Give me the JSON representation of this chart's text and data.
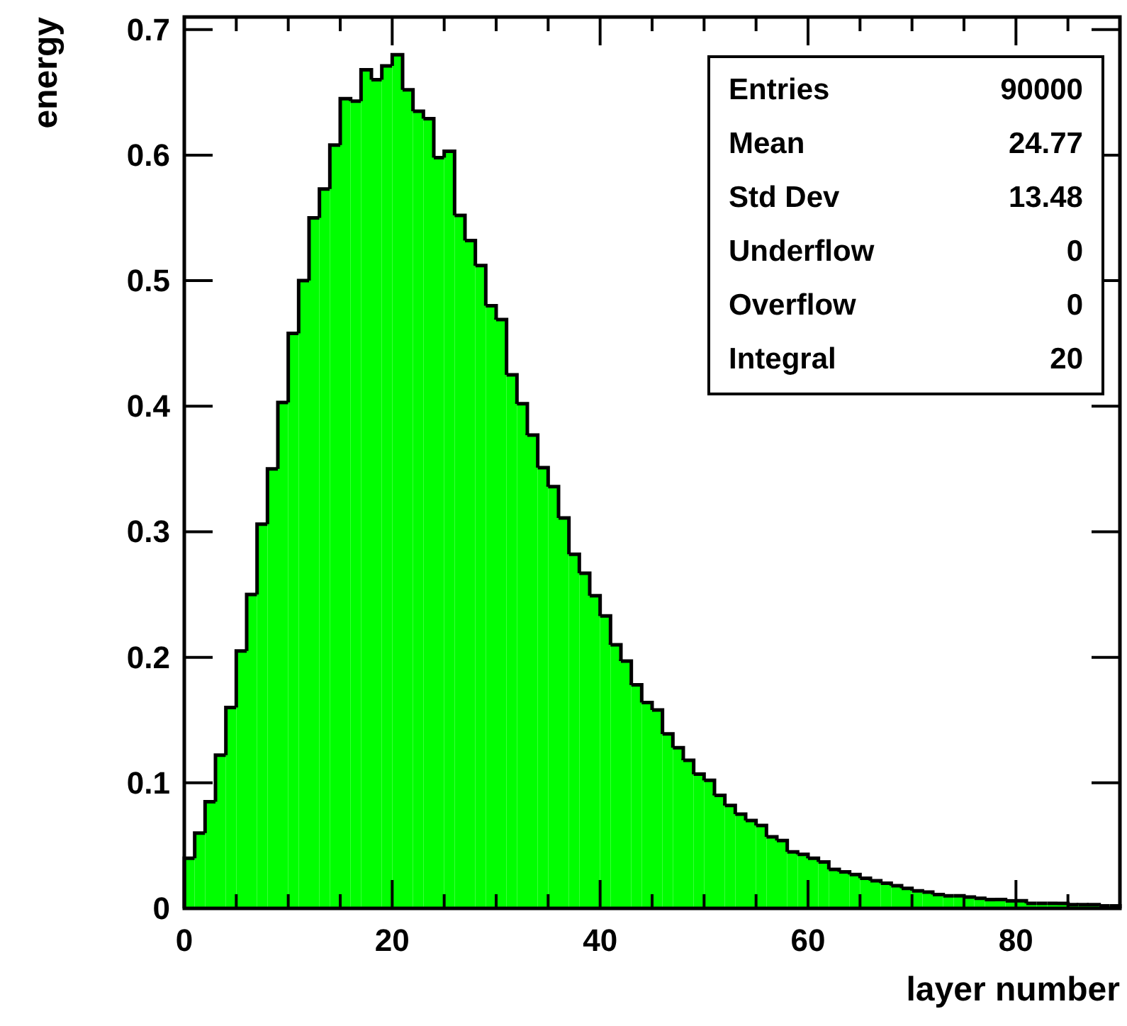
{
  "chart_data": {
    "type": "histogram",
    "xlabel": "layer number",
    "ylabel": "energy",
    "color": "#00ff00",
    "bins": [
      0,
      1,
      2,
      3,
      4,
      5,
      6,
      7,
      8,
      9,
      10,
      11,
      12,
      13,
      14,
      15,
      16,
      17,
      18,
      19,
      20,
      21,
      22,
      23,
      24,
      25,
      26,
      27,
      28,
      29,
      30,
      31,
      32,
      33,
      34,
      35,
      36,
      37,
      38,
      39,
      40,
      41,
      42,
      43,
      44,
      45,
      46,
      47,
      48,
      49,
      50,
      51,
      52,
      53,
      54,
      55,
      56,
      57,
      58,
      59,
      60,
      61,
      62,
      63,
      64,
      65,
      66,
      67,
      68,
      69,
      70,
      71,
      72,
      73,
      74,
      75,
      76,
      77,
      78,
      79,
      80,
      81,
      82,
      83,
      84,
      85,
      86,
      87,
      88,
      89,
      90
    ],
    "values": [
      0.04,
      0.06,
      0.085,
      0.122,
      0.16,
      0.205,
      0.25,
      0.306,
      0.35,
      0.403,
      0.458,
      0.5,
      0.55,
      0.573,
      0.608,
      0.645,
      0.643,
      0.668,
      0.66,
      0.671,
      0.68,
      0.652,
      0.635,
      0.629,
      0.598,
      0.603,
      0.552,
      0.532,
      0.512,
      0.48,
      0.469,
      0.425,
      0.402,
      0.377,
      0.351,
      0.336,
      0.311,
      0.282,
      0.267,
      0.249,
      0.233,
      0.21,
      0.197,
      0.178,
      0.164,
      0.158,
      0.139,
      0.128,
      0.118,
      0.107,
      0.102,
      0.09,
      0.082,
      0.075,
      0.07,
      0.066,
      0.057,
      0.054,
      0.045,
      0.043,
      0.04,
      0.037,
      0.031,
      0.029,
      0.027,
      0.024,
      0.022,
      0.02,
      0.018,
      0.016,
      0.014,
      0.013,
      0.011,
      0.01,
      0.01,
      0.009,
      0.008,
      0.007,
      0.007,
      0.006,
      0.006,
      0.004,
      0.004,
      0.004,
      0.004,
      0.003,
      0.003,
      0.003,
      0.002,
      0.002
    ],
    "xlim": [
      0,
      90
    ],
    "ylim": [
      0,
      0.71
    ],
    "xticks": [
      0,
      {
        "value": 5,
        "label": null
      },
      {
        "value": 10,
        "label": null
      },
      {
        "value": 15,
        "label": null
      },
      20,
      {
        "value": 25,
        "label": null
      },
      {
        "value": 30,
        "label": null
      },
      {
        "value": 35,
        "label": null
      },
      40,
      {
        "value": 45,
        "label": null
      },
      {
        "value": 50,
        "label": null
      },
      {
        "value": 55,
        "label": null
      },
      60,
      {
        "value": 65,
        "label": null
      },
      {
        "value": 70,
        "label": null
      },
      {
        "value": 75,
        "label": null
      },
      80,
      {
        "value": 85,
        "label": null
      }
    ],
    "yticks": [
      0,
      0.1,
      0.2,
      0.3,
      0.4,
      0.5,
      0.6,
      0.7
    ],
    "annotations": [
      "Entries 90000",
      "Mean 24.77",
      "Std Dev 13.48",
      "Underflow 0",
      "Overflow 0",
      "Integral 20"
    ]
  }
}
